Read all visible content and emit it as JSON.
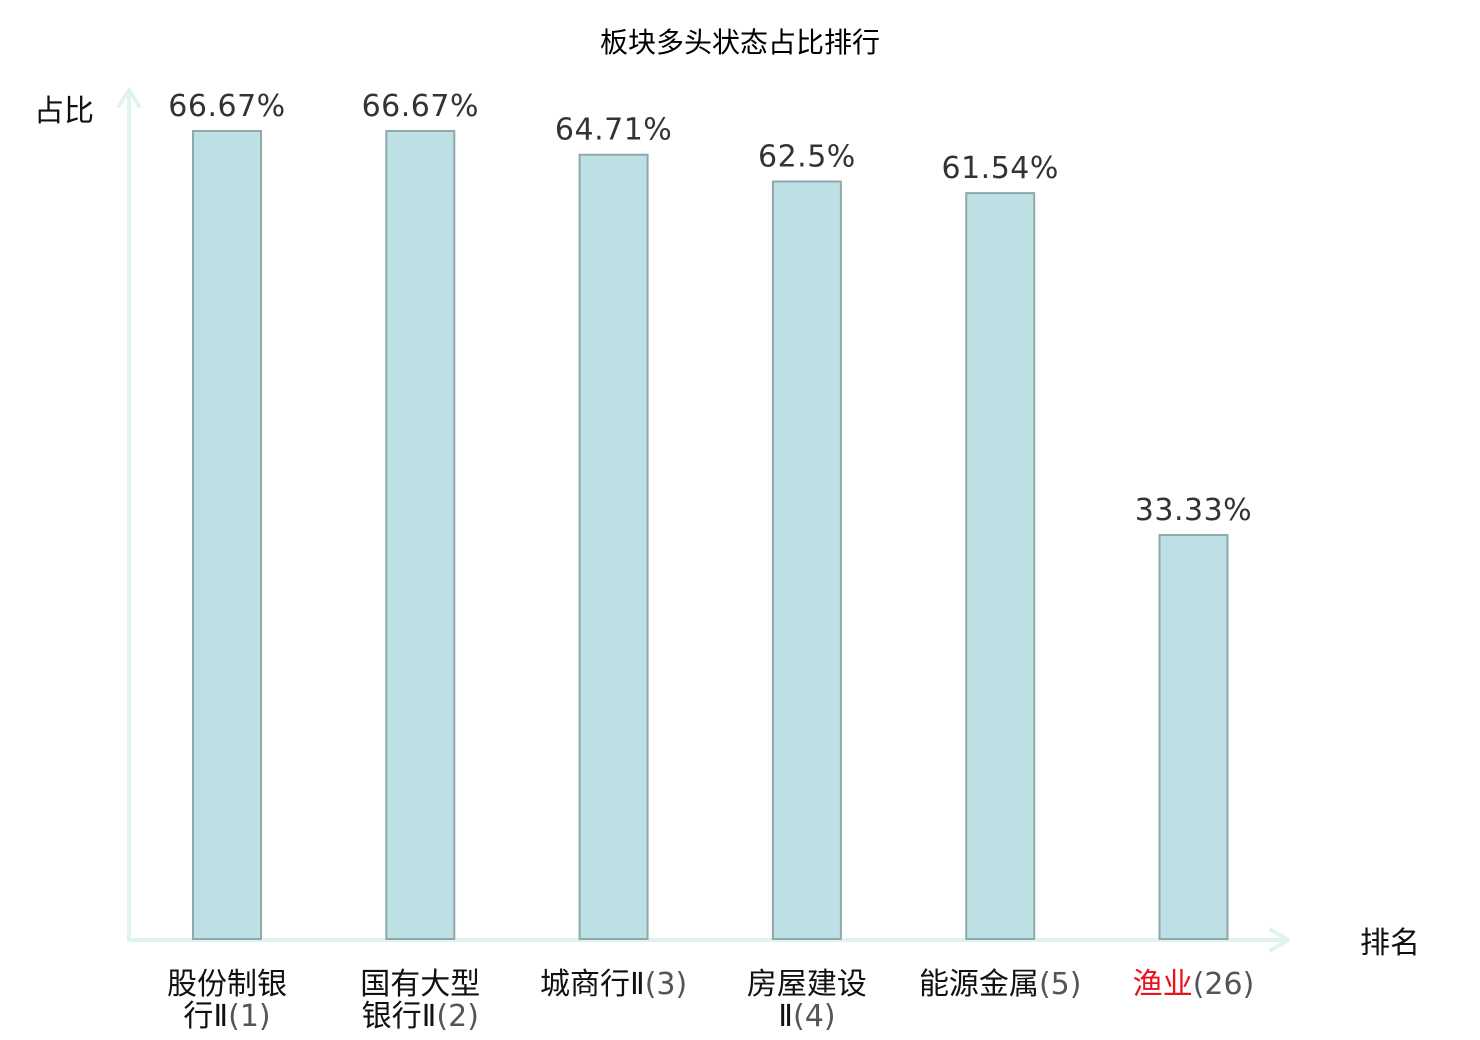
{
  "chart_data": {
    "type": "bar",
    "title": "板块多头状态占比排行",
    "ylabel": "占比",
    "xlabel": "排名",
    "ylim": [
      0,
      70
    ],
    "grid": false,
    "value_suffix": "%",
    "categories": [
      {
        "lines": [
          "股份制银",
          "行Ⅱ"
        ],
        "rank": "(1)",
        "highlight": false
      },
      {
        "lines": [
          "国有大型",
          "银行Ⅱ"
        ],
        "rank": "(2)",
        "highlight": false
      },
      {
        "lines": [
          "城商行Ⅱ"
        ],
        "rank": "(3)",
        "highlight": false
      },
      {
        "lines": [
          "房屋建设",
          "Ⅱ"
        ],
        "rank": "(4)",
        "highlight": false
      },
      {
        "lines": [
          "能源金属"
        ],
        "rank": "(5)",
        "highlight": false
      },
      {
        "lines": [
          "渔业"
        ],
        "rank": "(26)",
        "highlight": true
      }
    ],
    "values": [
      66.67,
      66.67,
      64.71,
      62.5,
      61.54,
      33.33
    ],
    "colors": {
      "bar_fill": "#bce0e3",
      "bar_stroke": "#8fa9ab",
      "axis": "#e1f3f1",
      "highlight_text": "#e8131c",
      "text": "#111111"
    }
  }
}
